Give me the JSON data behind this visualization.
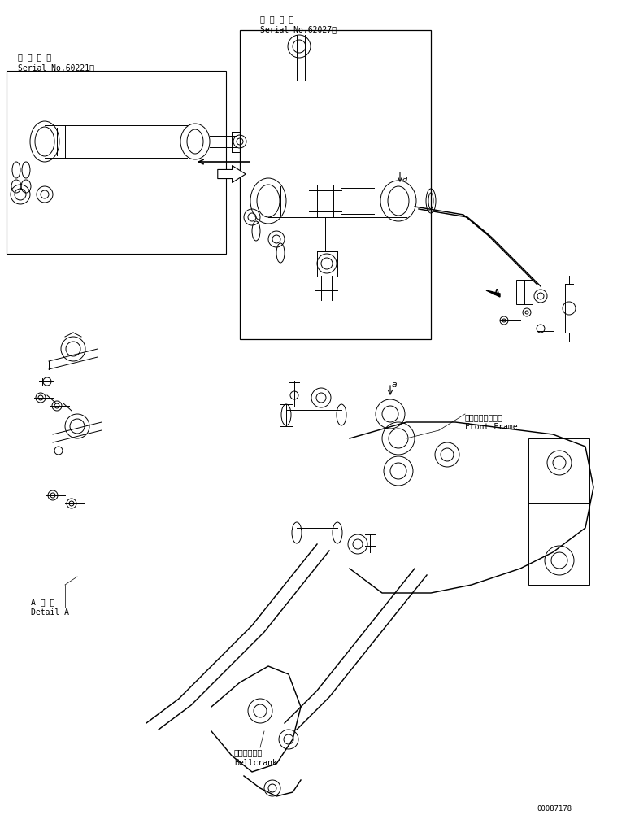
{
  "bg_color": "#ffffff",
  "line_color": "#000000",
  "text_color": "#000000",
  "title_font_size": 7,
  "label_font_size": 6.5,
  "fig_width": 7.7,
  "fig_height": 10.03,
  "labels": {
    "serial1_jp": "適 用 号 機",
    "serial1_en": "Serial No.60221～",
    "serial2_jp": "適 用 号 機",
    "serial2_en": "Serial No.62027～",
    "front_frame_jp": "フロントフレーム",
    "front_frame_en": "Front Frame",
    "bellcrank_jp": "ベルクランク",
    "bellcrank_en": "Bellcrank",
    "detail_jp": "A 詳 細",
    "detail_en": "Detail A",
    "part_no": "00087178"
  }
}
